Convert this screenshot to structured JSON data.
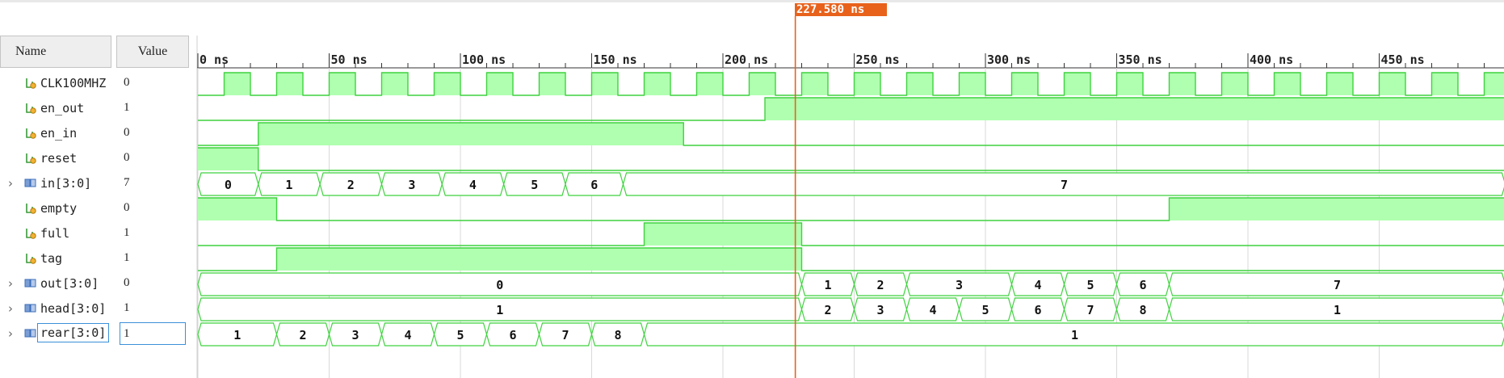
{
  "columns": {
    "name": "Name",
    "value": "Value"
  },
  "cursor": {
    "label": "227.580 ns"
  },
  "timeline": {
    "ticks": [
      {
        "t": 0,
        "label": "0 ns"
      },
      {
        "t": 50,
        "label": "50 ns"
      },
      {
        "t": 100,
        "label": "100 ns"
      },
      {
        "t": 150,
        "label": "150 ns"
      },
      {
        "t": 200,
        "label": "200 ns"
      },
      {
        "t": 250,
        "label": "250 ns"
      },
      {
        "t": 300,
        "label": "300 ns"
      },
      {
        "t": 350,
        "label": "350 ns"
      },
      {
        "t": 400,
        "label": "400 ns"
      },
      {
        "t": 450,
        "label": "450 ns"
      }
    ],
    "end_time": 498,
    "cursor_time": 227.58
  },
  "colors": {
    "wave": "#3fd23f",
    "wave_fill": "#b0ffb0",
    "cursor": "#e8621c",
    "grid": "#d9d9d9"
  },
  "signals": [
    {
      "name": "CLK100MHZ",
      "value": "0",
      "type": "bit",
      "icon": "bit-signal-icon",
      "expandable": false,
      "clock": {
        "period": 20,
        "first_rise": 10
      }
    },
    {
      "name": "en_out",
      "value": "1",
      "type": "bit",
      "icon": "bit-signal-icon",
      "expandable": false,
      "segments": [
        [
          0,
          0
        ],
        [
          216,
          1
        ]
      ]
    },
    {
      "name": "en_in",
      "value": "0",
      "type": "bit",
      "icon": "bit-signal-icon",
      "expandable": false,
      "segments": [
        [
          0,
          0
        ],
        [
          23,
          1
        ],
        [
          185,
          0
        ]
      ]
    },
    {
      "name": "reset",
      "value": "0",
      "type": "bit",
      "icon": "bit-signal-icon",
      "expandable": false,
      "segments": [
        [
          0,
          1
        ],
        [
          23,
          0
        ]
      ]
    },
    {
      "name": "in[3:0]",
      "value": "7",
      "type": "bus",
      "icon": "bus-signal-icon",
      "expandable": true,
      "segments": [
        [
          0,
          "0"
        ],
        [
          23,
          "1"
        ],
        [
          46.5,
          "2"
        ],
        [
          70,
          "3"
        ],
        [
          93,
          "4"
        ],
        [
          116.5,
          "5"
        ],
        [
          140,
          "6"
        ],
        [
          162,
          "7"
        ]
      ]
    },
    {
      "name": "empty",
      "value": "0",
      "type": "bit",
      "icon": "bit-signal-icon",
      "expandable": false,
      "segments": [
        [
          0,
          1
        ],
        [
          30,
          0
        ],
        [
          370,
          1
        ]
      ]
    },
    {
      "name": "full",
      "value": "1",
      "type": "bit",
      "icon": "bit-signal-icon",
      "expandable": false,
      "segments": [
        [
          0,
          0
        ],
        [
          170,
          1
        ],
        [
          230,
          0
        ]
      ]
    },
    {
      "name": "tag",
      "value": "1",
      "type": "bit",
      "icon": "bit-signal-icon",
      "expandable": false,
      "segments": [
        [
          0,
          0
        ],
        [
          30,
          1
        ],
        [
          230,
          0
        ]
      ]
    },
    {
      "name": "out[3:0]",
      "value": "0",
      "type": "bus",
      "icon": "bus-signal-icon",
      "expandable": true,
      "segments": [
        [
          0,
          "0"
        ],
        [
          230,
          "1"
        ],
        [
          250,
          "2"
        ],
        [
          270,
          "3"
        ],
        [
          310,
          "4"
        ],
        [
          330,
          "5"
        ],
        [
          350,
          "6"
        ],
        [
          370,
          "7"
        ]
      ]
    },
    {
      "name": "head[3:0]",
      "value": "1",
      "type": "bus",
      "icon": "bus-signal-icon",
      "expandable": true,
      "segments": [
        [
          0,
          "1"
        ],
        [
          230,
          "2"
        ],
        [
          250,
          "3"
        ],
        [
          270,
          "4"
        ],
        [
          290,
          "5"
        ],
        [
          310,
          "6"
        ],
        [
          330,
          "7"
        ],
        [
          350,
          "8"
        ],
        [
          370,
          "1"
        ]
      ]
    },
    {
      "name": "rear[3:0]",
      "value": "1",
      "type": "bus",
      "icon": "bus-signal-icon",
      "expandable": true,
      "selected": true,
      "segments": [
        [
          0,
          "1"
        ],
        [
          30,
          "2"
        ],
        [
          50,
          "3"
        ],
        [
          70,
          "4"
        ],
        [
          90,
          "5"
        ],
        [
          110,
          "6"
        ],
        [
          130,
          "7"
        ],
        [
          150,
          "8"
        ],
        [
          170,
          "1"
        ]
      ]
    }
  ]
}
